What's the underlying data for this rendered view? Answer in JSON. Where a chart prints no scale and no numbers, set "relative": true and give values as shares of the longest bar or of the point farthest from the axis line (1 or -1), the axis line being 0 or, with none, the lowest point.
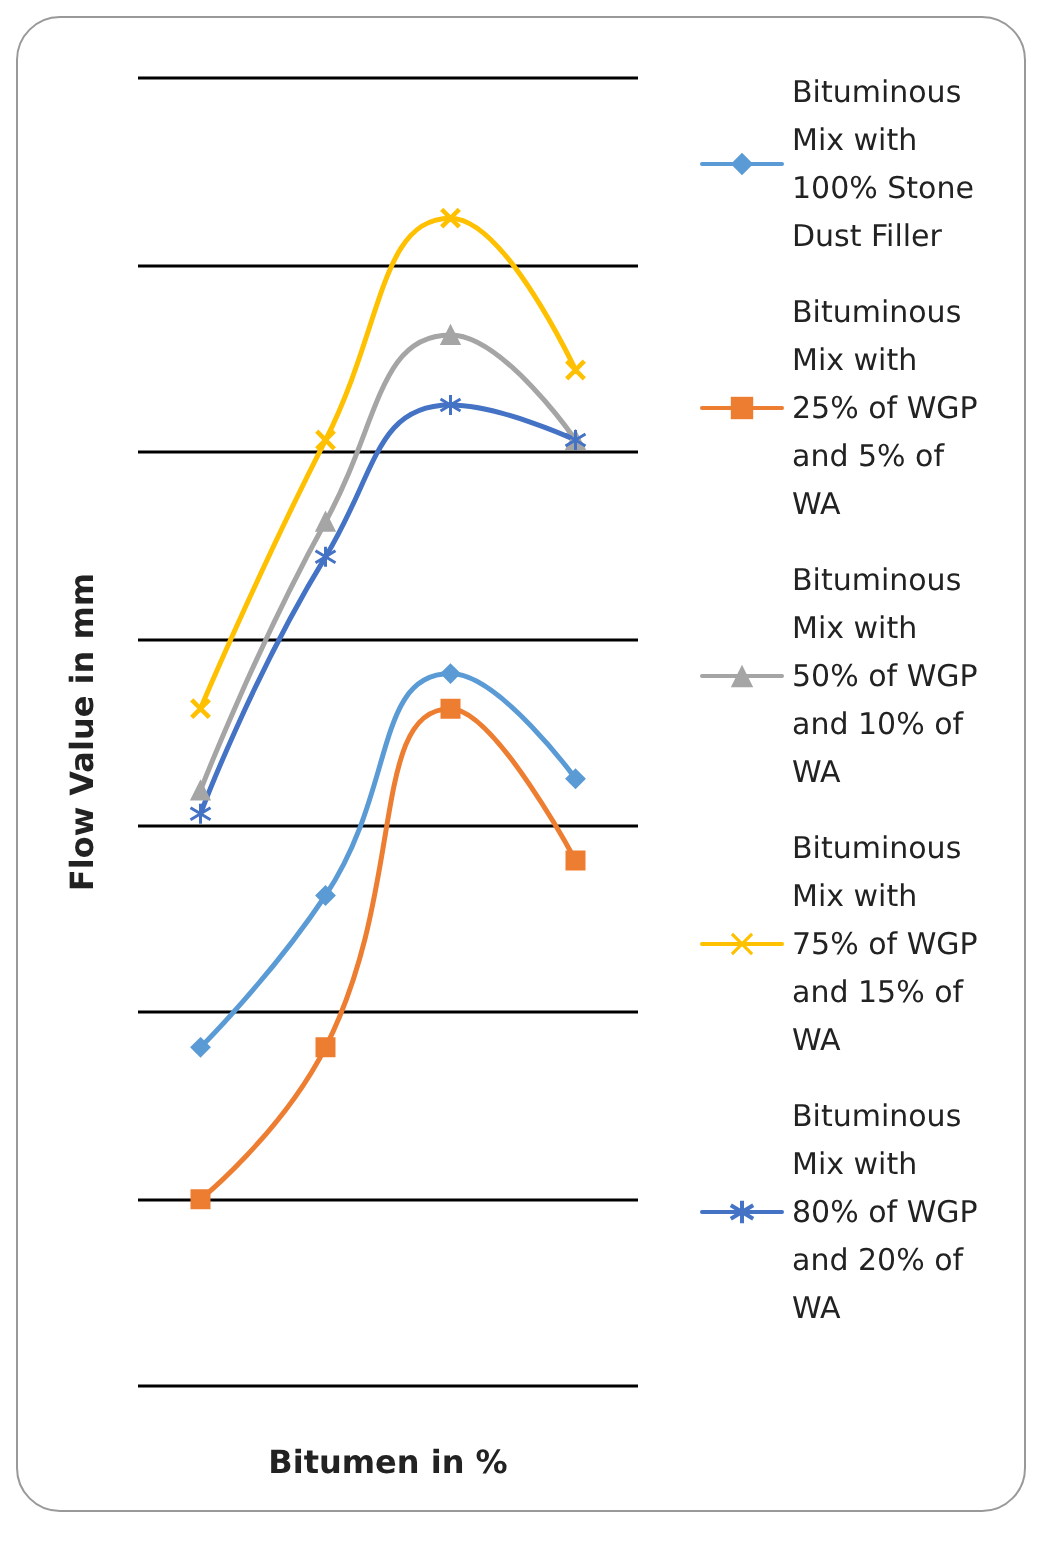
{
  "chart_data": {
    "type": "line",
    "xlabel": "Bitumen in %",
    "ylabel": "Flow Value in mm",
    "relative": true,
    "grid": "y",
    "legend": "right",
    "categories": [
      null,
      null,
      null,
      null
    ],
    "series": [
      {
        "name": "Bituminous Mix with 100% Stone Dust Filler",
        "color": "#5b9bd5",
        "marker": "diamond",
        "values": [
          0.29,
          0.42,
          0.61,
          0.52
        ]
      },
      {
        "name": "Bituminous Mix with 25% of WGP and 5% of WA",
        "color": "#ed7d31",
        "marker": "square",
        "values": [
          0.16,
          0.29,
          0.58,
          0.45
        ]
      },
      {
        "name": "Bituminous Mix with 50% of WGP and 10% of WA",
        "color": "#a5a5a5",
        "marker": "triangle",
        "values": [
          0.51,
          0.74,
          0.9,
          0.81
        ]
      },
      {
        "name": "Bituminous Mix with 75% of WGP and 15% of WA",
        "color": "#ffc000",
        "marker": "cross",
        "values": [
          0.58,
          0.81,
          1,
          0.87
        ]
      },
      {
        "name": "Bituminous Mix with 80% of WGP and 20% of WA",
        "color": "#4472c4",
        "marker": "star",
        "values": [
          0.49,
          0.71,
          0.84,
          0.81
        ]
      }
    ]
  }
}
